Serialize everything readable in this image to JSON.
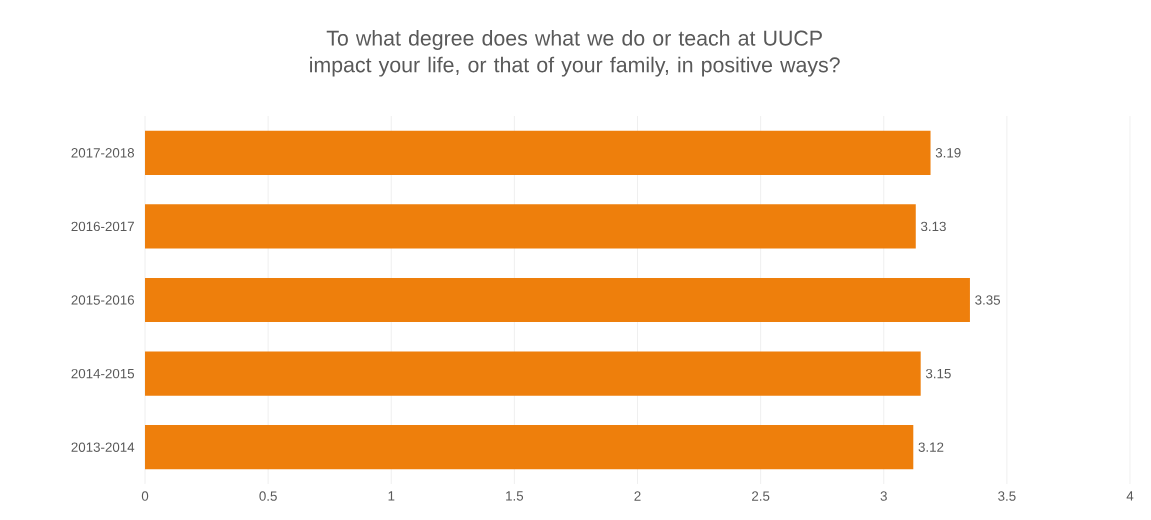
{
  "chart_data": {
    "type": "bar",
    "orientation": "horizontal",
    "title": "To what degree does what we do or teach at UUCP impact your life, or that of your family, in positive ways?",
    "categories": [
      "2017-2018",
      "2016-2017",
      "2015-2016",
      "2014-2015",
      "2013-2014"
    ],
    "values": [
      3.19,
      3.13,
      3.35,
      3.15,
      3.12
    ],
    "color": "#ee7f0c",
    "xlim": [
      0,
      4
    ],
    "xticks": [
      0,
      0.5,
      1,
      1.5,
      2,
      2.5,
      3,
      3.5,
      4
    ],
    "grid": "x",
    "data_labels": true
  }
}
